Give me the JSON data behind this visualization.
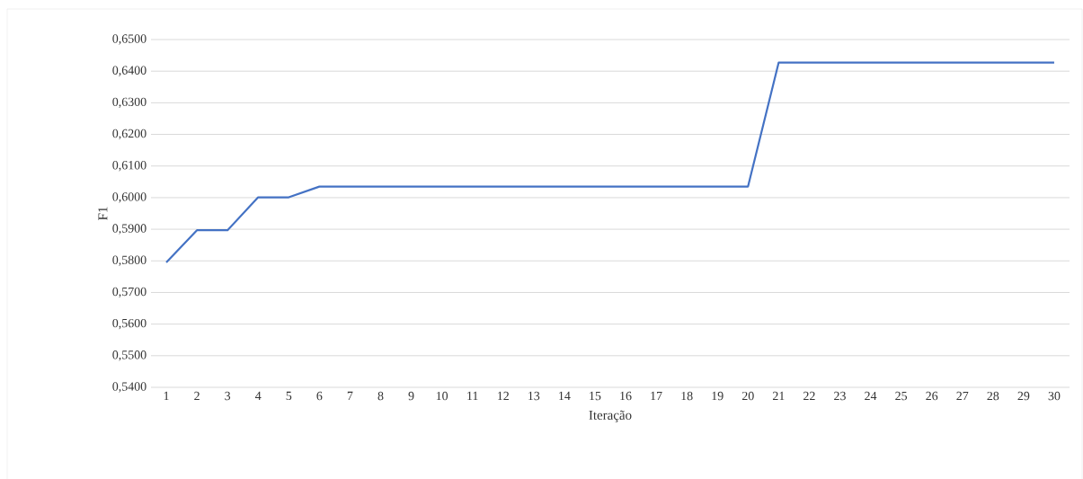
{
  "chart_data": {
    "type": "line",
    "xlabel": "Iteração",
    "ylabel": "F1",
    "categories": [
      "1",
      "2",
      "3",
      "4",
      "5",
      "6",
      "7",
      "8",
      "9",
      "10",
      "11",
      "12",
      "13",
      "14",
      "15",
      "16",
      "17",
      "18",
      "19",
      "20",
      "21",
      "22",
      "23",
      "24",
      "25",
      "26",
      "27",
      "28",
      "29",
      "30"
    ],
    "values": [
      0.5795,
      0.5897,
      0.5897,
      0.6001,
      0.6001,
      0.6035,
      0.6035,
      0.6035,
      0.6035,
      0.6035,
      0.6035,
      0.6035,
      0.6035,
      0.6035,
      0.6035,
      0.6035,
      0.6035,
      0.6035,
      0.6035,
      0.6035,
      0.6427,
      0.6427,
      0.6427,
      0.6427,
      0.6427,
      0.6427,
      0.6427,
      0.6427,
      0.6427,
      0.6427
    ],
    "color": "#4472c4",
    "ylim": [
      0.54,
      0.65
    ],
    "yticks": [
      {
        "value": 0.54,
        "label": "0,5400"
      },
      {
        "value": 0.55,
        "label": "0,5500"
      },
      {
        "value": 0.56,
        "label": "0,5600"
      },
      {
        "value": 0.57,
        "label": "0,5700"
      },
      {
        "value": 0.58,
        "label": "0,5800"
      },
      {
        "value": 0.59,
        "label": "0,5900"
      },
      {
        "value": 0.6,
        "label": "0,6000"
      },
      {
        "value": 0.61,
        "label": "0,6100"
      },
      {
        "value": 0.62,
        "label": "0,6200"
      },
      {
        "value": 0.63,
        "label": "0,6300"
      },
      {
        "value": 0.64,
        "label": "0,6400"
      },
      {
        "value": 0.65,
        "label": "0,6500"
      }
    ],
    "grid": "y",
    "marker": "none",
    "line_style": "solid"
  }
}
